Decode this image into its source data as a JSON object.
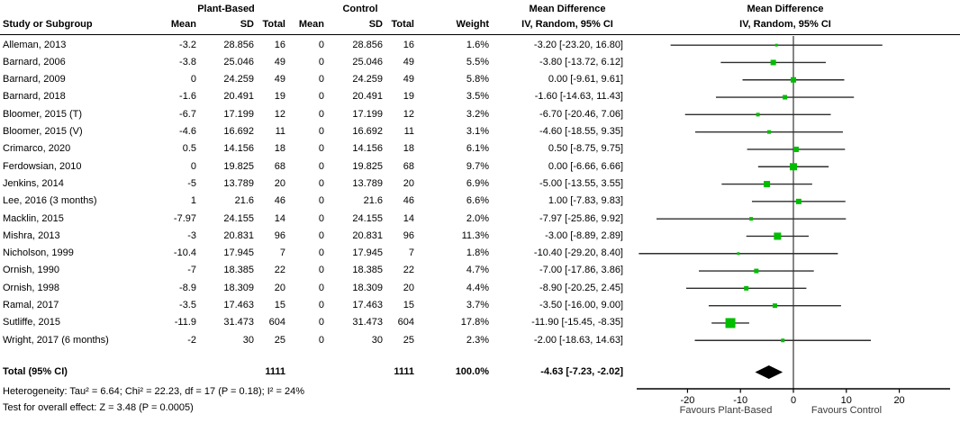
{
  "header": {
    "group_plant": "Plant-Based",
    "group_control": "Control",
    "md_text_col_title": "Mean Difference",
    "md_text_col_sub": "IV, Random, 95% CI",
    "md_plot_col_title": "Mean Difference",
    "md_plot_col_sub": "IV, Random, 95% CI",
    "col_study": "Study or Subgroup",
    "col_mean": "Mean",
    "col_sd": "SD",
    "col_total": "Total",
    "col_weight": "Weight"
  },
  "chart_data": {
    "type": "forest",
    "effect_measure": "Mean Difference",
    "method": "IV, Random, 95% CI",
    "studies": [
      {
        "name": "Alleman, 2013",
        "pb_mean": "-3.2",
        "pb_sd": "28.856",
        "pb_total": "16",
        "c_mean": "0",
        "c_sd": "28.856",
        "c_total": "16",
        "weight": "1.6%",
        "weight_pct": 1.6,
        "md": -3.2,
        "lo": -23.2,
        "hi": 16.8,
        "ci_label": "-3.20 [-23.20, 16.80]"
      },
      {
        "name": "Barnard, 2006",
        "pb_mean": "-3.8",
        "pb_sd": "25.046",
        "pb_total": "49",
        "c_mean": "0",
        "c_sd": "25.046",
        "c_total": "49",
        "weight": "5.5%",
        "weight_pct": 5.5,
        "md": -3.8,
        "lo": -13.72,
        "hi": 6.12,
        "ci_label": "-3.80 [-13.72, 6.12]"
      },
      {
        "name": "Barnard, 2009",
        "pb_mean": "0",
        "pb_sd": "24.259",
        "pb_total": "49",
        "c_mean": "0",
        "c_sd": "24.259",
        "c_total": "49",
        "weight": "5.8%",
        "weight_pct": 5.8,
        "md": 0,
        "lo": -9.61,
        "hi": 9.61,
        "ci_label": "0.00 [-9.61, 9.61]"
      },
      {
        "name": "Barnard, 2018",
        "pb_mean": "-1.6",
        "pb_sd": "20.491",
        "pb_total": "19",
        "c_mean": "0",
        "c_sd": "20.491",
        "c_total": "19",
        "weight": "3.5%",
        "weight_pct": 3.5,
        "md": -1.6,
        "lo": -14.63,
        "hi": 11.43,
        "ci_label": "-1.60 [-14.63, 11.43]"
      },
      {
        "name": "Bloomer, 2015 (T)",
        "pb_mean": "-6.7",
        "pb_sd": "17.199",
        "pb_total": "12",
        "c_mean": "0",
        "c_sd": "17.199",
        "c_total": "12",
        "weight": "3.2%",
        "weight_pct": 3.2,
        "md": -6.7,
        "lo": -20.46,
        "hi": 7.06,
        "ci_label": "-6.70 [-20.46, 7.06]"
      },
      {
        "name": "Bloomer, 2015 (V)",
        "pb_mean": "-4.6",
        "pb_sd": "16.692",
        "pb_total": "11",
        "c_mean": "0",
        "c_sd": "16.692",
        "c_total": "11",
        "weight": "3.1%",
        "weight_pct": 3.1,
        "md": -4.6,
        "lo": -18.55,
        "hi": 9.35,
        "ci_label": "-4.60 [-18.55, 9.35]"
      },
      {
        "name": "Crimarco, 2020",
        "pb_mean": "0.5",
        "pb_sd": "14.156",
        "pb_total": "18",
        "c_mean": "0",
        "c_sd": "14.156",
        "c_total": "18",
        "weight": "6.1%",
        "weight_pct": 6.1,
        "md": 0.5,
        "lo": -8.75,
        "hi": 9.75,
        "ci_label": "0.50 [-8.75, 9.75]"
      },
      {
        "name": "Ferdowsian, 2010",
        "pb_mean": "0",
        "pb_sd": "19.825",
        "pb_total": "68",
        "c_mean": "0",
        "c_sd": "19.825",
        "c_total": "68",
        "weight": "9.7%",
        "weight_pct": 9.7,
        "md": 0,
        "lo": -6.66,
        "hi": 6.66,
        "ci_label": "0.00 [-6.66, 6.66]"
      },
      {
        "name": "Jenkins, 2014",
        "pb_mean": "-5",
        "pb_sd": "13.789",
        "pb_total": "20",
        "c_mean": "0",
        "c_sd": "13.789",
        "c_total": "20",
        "weight": "6.9%",
        "weight_pct": 6.9,
        "md": -5,
        "lo": -13.55,
        "hi": 3.55,
        "ci_label": "-5.00 [-13.55, 3.55]"
      },
      {
        "name": "Lee, 2016 (3 months)",
        "pb_mean": "1",
        "pb_sd": "21.6",
        "pb_total": "46",
        "c_mean": "0",
        "c_sd": "21.6",
        "c_total": "46",
        "weight": "6.6%",
        "weight_pct": 6.6,
        "md": 1,
        "lo": -7.83,
        "hi": 9.83,
        "ci_label": "1.00 [-7.83, 9.83]"
      },
      {
        "name": "Macklin, 2015",
        "pb_mean": "-7.97",
        "pb_sd": "24.155",
        "pb_total": "14",
        "c_mean": "0",
        "c_sd": "24.155",
        "c_total": "14",
        "weight": "2.0%",
        "weight_pct": 2.0,
        "md": -7.97,
        "lo": -25.86,
        "hi": 9.92,
        "ci_label": "-7.97 [-25.86, 9.92]"
      },
      {
        "name": "Mishra, 2013",
        "pb_mean": "-3",
        "pb_sd": "20.831",
        "pb_total": "96",
        "c_mean": "0",
        "c_sd": "20.831",
        "c_total": "96",
        "weight": "11.3%",
        "weight_pct": 11.3,
        "md": -3,
        "lo": -8.89,
        "hi": 2.89,
        "ci_label": "-3.00 [-8.89, 2.89]"
      },
      {
        "name": "Nicholson, 1999",
        "pb_mean": "-10.4",
        "pb_sd": "17.945",
        "pb_total": "7",
        "c_mean": "0",
        "c_sd": "17.945",
        "c_total": "7",
        "weight": "1.8%",
        "weight_pct": 1.8,
        "md": -10.4,
        "lo": -29.2,
        "hi": 8.4,
        "ci_label": "-10.40 [-29.20, 8.40]"
      },
      {
        "name": "Ornish, 1990",
        "pb_mean": "-7",
        "pb_sd": "18.385",
        "pb_total": "22",
        "c_mean": "0",
        "c_sd": "18.385",
        "c_total": "22",
        "weight": "4.7%",
        "weight_pct": 4.7,
        "md": -7,
        "lo": -17.86,
        "hi": 3.86,
        "ci_label": "-7.00 [-17.86, 3.86]"
      },
      {
        "name": "Ornish, 1998",
        "pb_mean": "-8.9",
        "pb_sd": "18.309",
        "pb_total": "20",
        "c_mean": "0",
        "c_sd": "18.309",
        "c_total": "20",
        "weight": "4.4%",
        "weight_pct": 4.4,
        "md": -8.9,
        "lo": -20.25,
        "hi": 2.45,
        "ci_label": "-8.90 [-20.25, 2.45]"
      },
      {
        "name": "Ramal, 2017",
        "pb_mean": "-3.5",
        "pb_sd": "17.463",
        "pb_total": "15",
        "c_mean": "0",
        "c_sd": "17.463",
        "c_total": "15",
        "weight": "3.7%",
        "weight_pct": 3.7,
        "md": -3.5,
        "lo": -16.0,
        "hi": 9.0,
        "ci_label": "-3.50 [-16.00, 9.00]"
      },
      {
        "name": "Sutliffe, 2015",
        "pb_mean": "-11.9",
        "pb_sd": "31.473",
        "pb_total": "604",
        "c_mean": "0",
        "c_sd": "31.473",
        "c_total": "604",
        "weight": "17.8%",
        "weight_pct": 17.8,
        "md": -11.9,
        "lo": -15.45,
        "hi": -8.35,
        "ci_label": "-11.90 [-15.45, -8.35]"
      },
      {
        "name": "Wright, 2017 (6 months)",
        "pb_mean": "-2",
        "pb_sd": "30",
        "pb_total": "25",
        "c_mean": "0",
        "c_sd": "30",
        "c_total": "25",
        "weight": "2.3%",
        "weight_pct": 2.3,
        "md": -2,
        "lo": -18.63,
        "hi": 14.63,
        "ci_label": "-2.00 [-18.63, 14.63]"
      }
    ],
    "total": {
      "label": "Total (95% CI)",
      "pb_total": "1111",
      "c_total": "1111",
      "weight": "100.0%",
      "md": -4.63,
      "lo": -7.23,
      "hi": -2.02,
      "ci_label": "-4.63 [-7.23, -2.02]"
    },
    "heterogeneity": "Heterogeneity: Tau² = 6.64; Chi² = 22.23, df = 17 (P = 0.18); I² = 24%",
    "overall_effect": "Test for overall effect: Z = 3.48 (P = 0.0005)",
    "axis": {
      "min": -29.6,
      "max": 29.6,
      "ticks": [
        -20,
        -10,
        0,
        10,
        20
      ]
    },
    "favours_left": "Favours Plant-Based",
    "favours_right": "Favours Control",
    "colors": {
      "marker": "#00bd00",
      "zero_line": "#787878",
      "ci_line": "#2e2e2e",
      "diamond": "#000000",
      "axis": "#000000"
    }
  }
}
